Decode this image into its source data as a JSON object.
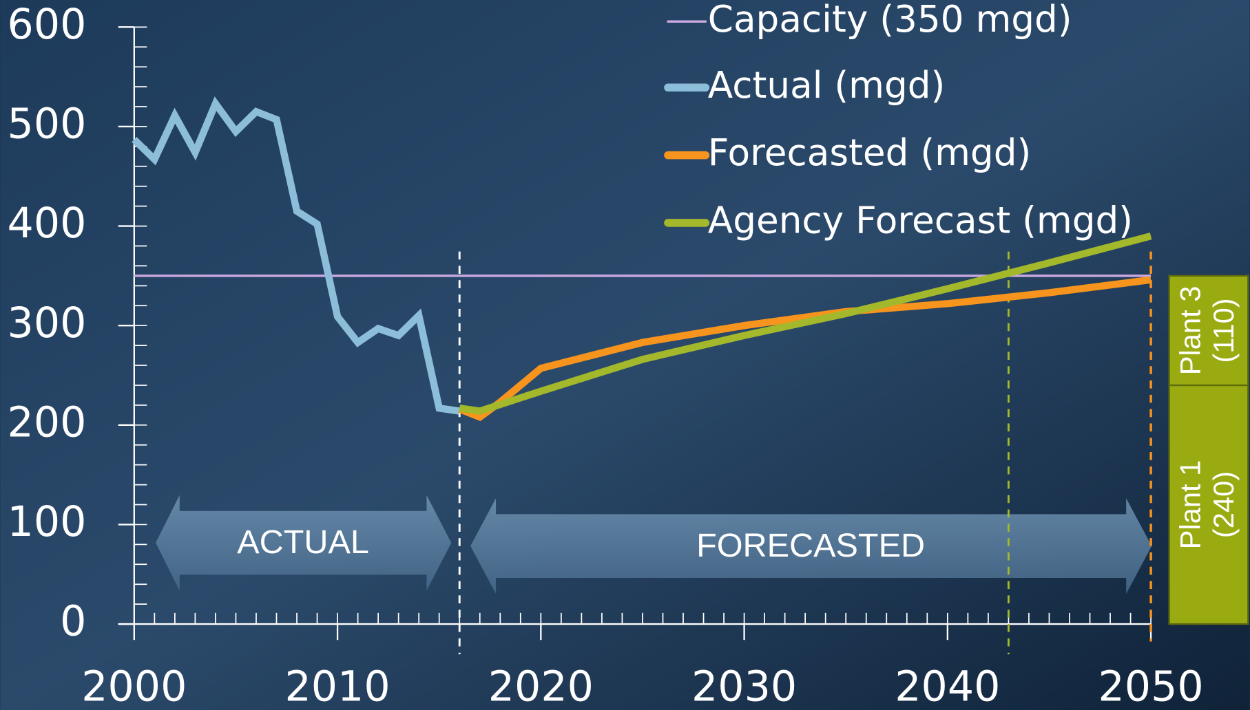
{
  "chart_data": {
    "type": "line",
    "xlim": [
      2000,
      2050
    ],
    "xticks": [
      2000,
      2010,
      2020,
      2030,
      2040,
      2050
    ],
    "xminor": 1,
    "ylim": [
      0,
      600
    ],
    "yticks": [
      0,
      100,
      200,
      300,
      400,
      500,
      600
    ],
    "yminor": 20,
    "legend": "upper right",
    "series": [
      {
        "name": "Capacity (350 mgd)",
        "color": "#c9a8e0",
        "x": [
          2000,
          2050
        ],
        "values": [
          350,
          350
        ]
      },
      {
        "name": "Actual (mgd)",
        "color": "#8cbdd9",
        "x": [
          2000,
          2001,
          2002,
          2003,
          2004,
          2005,
          2006,
          2007,
          2008,
          2009,
          2010,
          2011,
          2012,
          2013,
          2014,
          2015,
          2016
        ],
        "values": [
          487,
          467,
          511,
          474,
          523,
          495,
          515,
          507,
          415,
          402,
          309,
          283,
          297,
          290,
          310,
          217,
          214
        ]
      },
      {
        "name": "Forecasted (mgd)",
        "color": "#f7941d",
        "x": [
          2016,
          2017,
          2018,
          2020,
          2025,
          2030,
          2035,
          2040,
          2045,
          2050
        ],
        "values": [
          216,
          208,
          223,
          257,
          283,
          300,
          314,
          322,
          333,
          346
        ]
      },
      {
        "name": "Agency Forecast (mgd)",
        "color": "#a3b82a",
        "x": [
          2016,
          2017,
          2020,
          2025,
          2030,
          2035,
          2040,
          2045,
          2050
        ],
        "values": [
          217,
          214,
          234,
          266,
          290,
          312,
          337,
          363,
          390
        ]
      }
    ],
    "vlines": [
      {
        "x": 2016,
        "color": "#ffffff"
      },
      {
        "x": 2043,
        "color": "#a3b82a"
      },
      {
        "x": 2050,
        "color": "#f7941d"
      }
    ],
    "annotations": [
      "ACTUAL",
      "FORECASTED"
    ],
    "capacity_bars": {
      "color": "#9aab12",
      "labels": [
        "Plant 1",
        "Plant 3"
      ],
      "values": [
        240,
        110
      ],
      "value_labels": [
        "(240)",
        "(110)"
      ]
    }
  }
}
